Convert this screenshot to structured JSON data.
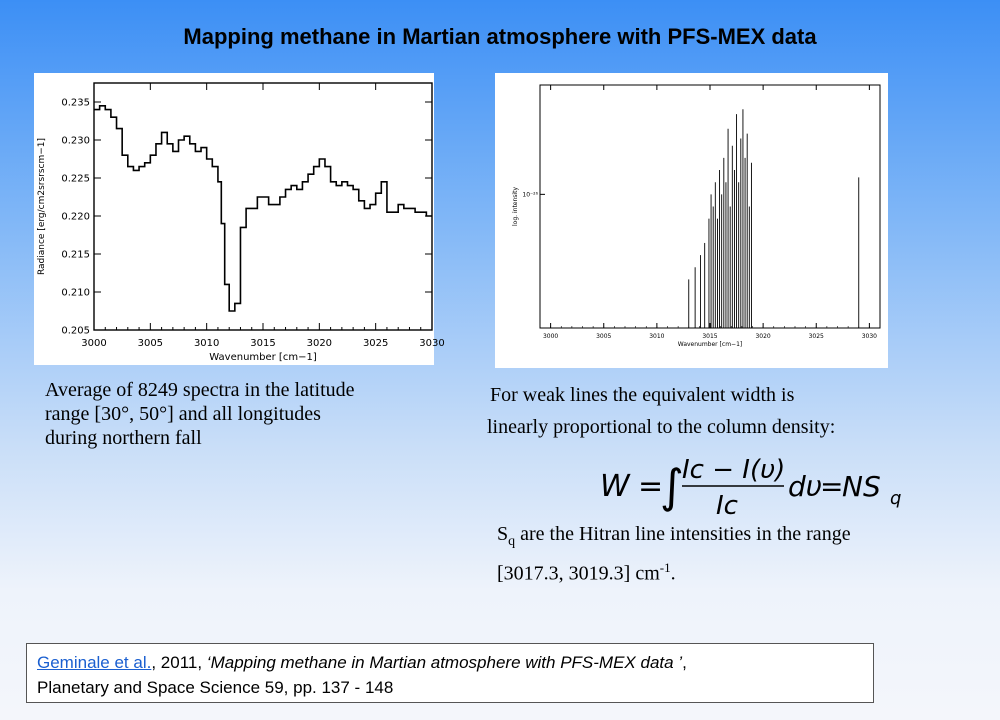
{
  "title": "Mapping methane in Martian atmosphere with PFS-MEX data",
  "caption_left": "Average of 8249 spectra in the latitude range [30°, 50°] and all longitudes during northern fall",
  "caption_right_line1": "For weak lines the equivalent width is",
  "caption_right_line2": "linearly proportional to the column density:",
  "formula": {
    "lhs": "W",
    "equals": "=",
    "integral": "∫",
    "numerator": "Ic − I(υ)",
    "denominator": "Ic",
    "differential": "dυ",
    "rhs_n": "NS",
    "rhs_sub": "q"
  },
  "sq_text": {
    "s": "S",
    "sub": "q",
    "line1": " are the Hitran line intensities in the range",
    "line2": "[3017.3, 3019.3] cm",
    "sup": "-1",
    "end": "."
  },
  "reference": {
    "link": "Geminale et al.",
    "year": ", 2011, ",
    "quote": "‘Mapping methane in Martian atmosphere with PFS-MEX data ’",
    "after_quote": ",",
    "line2": "Planetary and Space Science 59, pp. 137 - 148"
  },
  "chart_data": [
    {
      "type": "line",
      "xlabel": "Wavenumber [cm−1]",
      "ylabel": "Radiance [erg/cm2srsrscm−1]",
      "xlim": [
        3000,
        3030
      ],
      "ylim": [
        0.205,
        0.2375
      ],
      "xticks": [
        "3000",
        "3005",
        "3010",
        "3015",
        "3020",
        "3025",
        "3030"
      ],
      "yticks": [
        "0.205",
        "0.210",
        "0.215",
        "0.220",
        "0.225",
        "0.230",
        "0.235"
      ],
      "series": [
        {
          "x": [
            3000,
            3000.5,
            3001,
            3001.5,
            3002,
            3002.5,
            3003,
            3003.5,
            3004,
            3004.5,
            3005,
            3005.5,
            3006,
            3006.5,
            3007,
            3007.5,
            3008,
            3008.5,
            3009,
            3009.5,
            3010,
            3010.5,
            3011,
            3011.3,
            3011.6,
            3012,
            3012.5,
            3013,
            3013.5,
            3014,
            3014.5,
            3015,
            3015.5,
            3016,
            3016.5,
            3017,
            3017.5,
            3018,
            3018.5,
            3019,
            3019.5,
            3020,
            3020.5,
            3021,
            3021.5,
            3022,
            3022.5,
            3023,
            3023.5,
            3024,
            3024.5,
            3025,
            3025.5,
            3026,
            3026.5,
            3027,
            3027.5,
            3028,
            3028.5,
            3029,
            3029.5,
            3030
          ],
          "y": [
            0.234,
            0.2345,
            0.234,
            0.233,
            0.2315,
            0.228,
            0.2265,
            0.226,
            0.2265,
            0.227,
            0.228,
            0.2295,
            0.231,
            0.2295,
            0.2285,
            0.23,
            0.2305,
            0.2295,
            0.2285,
            0.229,
            0.2275,
            0.2265,
            0.2245,
            0.219,
            0.211,
            0.2075,
            0.2085,
            0.2185,
            0.221,
            0.221,
            0.2225,
            0.2225,
            0.2215,
            0.2215,
            0.2225,
            0.2235,
            0.224,
            0.2235,
            0.2245,
            0.2255,
            0.2265,
            0.2275,
            0.2265,
            0.2245,
            0.224,
            0.2245,
            0.224,
            0.2235,
            0.222,
            0.221,
            0.2215,
            0.223,
            0.2245,
            0.2205,
            0.2205,
            0.2215,
            0.221,
            0.221,
            0.2205,
            0.2205,
            0.22,
            0.22
          ]
        }
      ]
    },
    {
      "type": "bar",
      "xlabel": "Wavenumber [cm−1]",
      "ylabel": "log. intensity",
      "xlim": [
        2999,
        3031
      ],
      "ylim": [
        0,
        1
      ],
      "xticks": [
        "3000",
        "3005",
        "3010",
        "3015",
        "3020",
        "3025",
        "3030"
      ],
      "yticks": [
        "10⁻²⁶"
      ],
      "series": [
        {
          "x": [
            3013.0,
            3013.6,
            3014.1,
            3014.5,
            3014.9,
            3015.1,
            3015.3,
            3015.5,
            3015.7,
            3015.9,
            3016.1,
            3016.3,
            3016.5,
            3016.7,
            3016.9,
            3017.1,
            3017.3,
            3017.5,
            3017.7,
            3017.9,
            3018.1,
            3018.3,
            3018.5,
            3018.7,
            3018.9,
            3029.0
          ],
          "y": [
            0.2,
            0.25,
            0.3,
            0.35,
            0.45,
            0.55,
            0.5,
            0.6,
            0.45,
            0.65,
            0.55,
            0.7,
            0.6,
            0.82,
            0.5,
            0.75,
            0.65,
            0.88,
            0.6,
            0.78,
            0.9,
            0.7,
            0.8,
            0.5,
            0.68,
            0.62
          ]
        }
      ]
    }
  ]
}
